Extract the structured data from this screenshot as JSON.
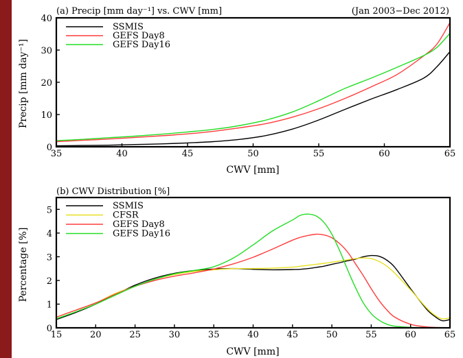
{
  "chart_data": [
    {
      "type": "line",
      "panel": "(a)",
      "title": "(a) Precip [mm day⁻¹] vs. CWV [mm]",
      "title_right": "(Jan 2003−Dec 2012)",
      "xlabel": "CWV [mm]",
      "ylabel": "Precip [mm day⁻¹]",
      "xlim": [
        35,
        65
      ],
      "ylim": [
        0,
        40
      ],
      "xticks": [
        35,
        40,
        45,
        50,
        55,
        60,
        65
      ],
      "yticks": [
        0,
        10,
        20,
        30,
        40
      ],
      "grid": false,
      "legend_position": "top-left",
      "x": [
        35,
        37,
        39,
        41,
        43,
        45,
        47,
        49,
        51,
        53,
        55,
        57,
        59,
        61,
        63,
        64,
        65
      ],
      "series": [
        {
          "name": "SSMIS",
          "color": "#000000",
          "values": [
            0.3,
            0.4,
            0.5,
            0.7,
            0.9,
            1.2,
            1.6,
            2.3,
            3.5,
            5.5,
            8.3,
            11.6,
            14.8,
            17.8,
            21.3,
            24.8,
            29.5
          ]
        },
        {
          "name": "GEFS Day8",
          "color": "#ff3b3b",
          "values": [
            1.6,
            2.0,
            2.4,
            2.9,
            3.4,
            4.0,
            4.8,
            5.9,
            7.2,
            9.2,
            11.8,
            15.0,
            18.6,
            22.5,
            28.2,
            31.8,
            38.5
          ]
        },
        {
          "name": "GEFS Day16",
          "color": "#22dd22",
          "values": [
            1.9,
            2.3,
            2.8,
            3.3,
            3.9,
            4.6,
            5.4,
            6.6,
            8.3,
            10.8,
            14.3,
            18.1,
            21.3,
            24.7,
            28.3,
            30.8,
            35.2
          ]
        }
      ]
    },
    {
      "type": "line",
      "panel": "(b)",
      "title": "(b) CWV Distribution [%]",
      "xlabel": "CWV [mm]",
      "ylabel": "Percentage [%]",
      "xlim": [
        15,
        65
      ],
      "ylim": [
        0,
        5.5
      ],
      "xticks": [
        15,
        20,
        25,
        30,
        35,
        40,
        45,
        50,
        55,
        60,
        65
      ],
      "yticks": [
        0,
        1,
        2,
        3,
        4,
        5
      ],
      "grid": false,
      "legend_position": "top-left",
      "x": [
        15,
        17.5,
        20,
        22.5,
        25,
        27.5,
        30,
        32.5,
        35,
        37.5,
        40,
        42.5,
        45,
        46,
        47,
        48,
        49,
        50,
        51,
        52,
        53,
        54,
        55,
        56,
        57,
        58,
        60,
        62,
        63,
        64,
        65
      ],
      "series": [
        {
          "name": "SSMIS",
          "color": "#000000",
          "values": [
            0.35,
            0.65,
            1.0,
            1.4,
            1.8,
            2.1,
            2.3,
            2.42,
            2.48,
            2.5,
            2.47,
            2.45,
            2.46,
            2.47,
            2.5,
            2.55,
            2.6,
            2.68,
            2.75,
            2.83,
            2.9,
            3.0,
            3.05,
            3.02,
            2.85,
            2.55,
            1.65,
            0.8,
            0.5,
            0.3,
            0.35
          ]
        },
        {
          "name": "CFSR",
          "color": "#e8e020",
          "values": [
            0.45,
            0.75,
            1.05,
            1.45,
            1.75,
            2.05,
            2.25,
            2.38,
            2.45,
            2.5,
            2.5,
            2.52,
            2.56,
            2.6,
            2.64,
            2.68,
            2.72,
            2.77,
            2.82,
            2.87,
            2.92,
            2.95,
            2.92,
            2.8,
            2.6,
            2.3,
            1.6,
            0.85,
            0.55,
            0.38,
            0.42
          ]
        },
        {
          "name": "GEFS Day8",
          "color": "#ff3b3b",
          "values": [
            0.45,
            0.75,
            1.05,
            1.42,
            1.75,
            2.0,
            2.18,
            2.32,
            2.48,
            2.7,
            2.98,
            3.33,
            3.7,
            3.82,
            3.9,
            3.95,
            3.92,
            3.8,
            3.55,
            3.2,
            2.7,
            2.2,
            1.65,
            1.15,
            0.75,
            0.45,
            0.15,
            0.04,
            0.02,
            0.01,
            0.01
          ]
        },
        {
          "name": "GEFS Day16",
          "color": "#22dd22",
          "values": [
            0.38,
            0.68,
            1.0,
            1.38,
            1.75,
            2.05,
            2.28,
            2.42,
            2.58,
            2.95,
            3.5,
            4.1,
            4.55,
            4.75,
            4.8,
            4.72,
            4.45,
            3.95,
            3.25,
            2.45,
            1.7,
            1.05,
            0.6,
            0.32,
            0.15,
            0.07,
            0.02,
            0.01,
            0.0,
            0.0,
            0.0
          ]
        }
      ]
    }
  ]
}
